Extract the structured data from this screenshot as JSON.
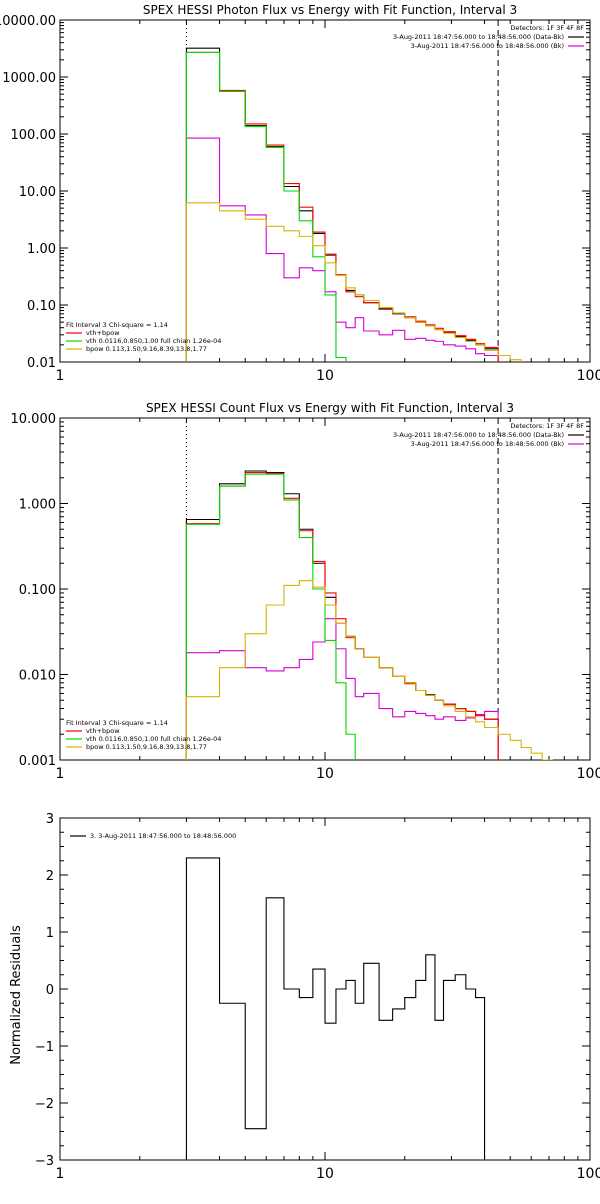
{
  "colors": {
    "data": "#000000",
    "bk": "#d800d8",
    "total": "#ff0000",
    "vth": "#00d800",
    "bpow": "#d8b400"
  },
  "chart_data": [
    {
      "type": "line",
      "title": "SPEX HESSI Photon Flux vs Energy with Fit Function, Interval 3",
      "xlabel": "",
      "ylabel": "",
      "xscale": "log",
      "yscale": "log",
      "xlim": [
        1,
        100
      ],
      "ylim": [
        0.01,
        10000
      ],
      "xticks": [
        "1",
        "10",
        "100"
      ],
      "yticks": [
        "10000.00",
        "1000.00",
        "100.00",
        "10.00",
        "1.00",
        "0.10",
        "0.01"
      ],
      "vlines": [
        {
          "x": 3,
          "style": "dotted"
        },
        {
          "x": 45,
          "style": "dashed"
        }
      ],
      "legend_top": {
        "position": "top-right",
        "header": "Detectors: 1F 3F 4F 8F",
        "items": [
          {
            "label": "3-Aug-2011 18:47:56.000 to 18:48:56.000 (Data-Bk)",
            "color": "#000000"
          },
          {
            "label": "3-Aug-2011 18:47:56.000 to 18:48:56.000 (Bk)",
            "color": "#d800d8"
          }
        ]
      },
      "legend_bottom": {
        "position": "bottom-left",
        "header": "Fit Interval 3   Chi-square = 1.14",
        "items": [
          {
            "label": "vth+bpow",
            "color": "#ff0000"
          },
          {
            "label": "vth 0.0116,0.850,1.00  full chian 1.26e-04",
            "color": "#00d800"
          },
          {
            "label": "bpow 0.113,1.50,9.16,8.39,13.8,1.77",
            "color": "#d8b400"
          }
        ]
      },
      "edges": [
        3,
        4,
        5,
        6,
        7,
        8,
        9,
        10,
        11,
        12,
        13,
        14,
        16,
        18,
        20,
        22,
        24,
        26,
        28,
        31,
        34,
        37,
        40,
        45
      ],
      "series": [
        {
          "key": "data",
          "color": "#000000",
          "values": [
            3200,
            560,
            140,
            60,
            12,
            4.5,
            1.8,
            0.75,
            0.33,
            0.18,
            0.15,
            0.11,
            0.085,
            0.07,
            0.06,
            0.05,
            0.043,
            0.037,
            0.033,
            0.028,
            0.024,
            0.02,
            0.017
          ]
        },
        {
          "key": "bk",
          "color": "#d800d8",
          "values": [
            85,
            5.5,
            3.8,
            0.8,
            0.3,
            0.45,
            0.4,
            0.17,
            0.05,
            0.04,
            0.06,
            0.035,
            0.03,
            0.036,
            0.025,
            0.026,
            0.024,
            0.023,
            0.02,
            0.019,
            0.017,
            0.014,
            0.013
          ]
        },
        {
          "key": "total",
          "color": "#ff0000",
          "values": [
            2700,
            580,
            150,
            64,
            13.5,
            5.2,
            1.9,
            0.78,
            0.34,
            0.17,
            0.14,
            0.11,
            0.088,
            0.072,
            0.062,
            0.052,
            0.045,
            0.039,
            0.034,
            0.029,
            0.025,
            0.021,
            0.018
          ]
        },
        {
          "key": "vth",
          "color": "#00d800",
          "values": [
            2700,
            560,
            135,
            58,
            10,
            3,
            0.7,
            0.15,
            0.012,
            0.0008
          ]
        },
        {
          "key": "bpow",
          "color": "#d8b400",
          "values": [
            6.2,
            4.5,
            3.2,
            2.4,
            2.0,
            1.6,
            1.1,
            0.55,
            0.33,
            0.2,
            0.15,
            0.12,
            0.09,
            0.072,
            0.06,
            0.05,
            0.043,
            0.037,
            0.032,
            0.027,
            0.023,
            0.02,
            0.016,
            0.013,
            0.011,
            0.009
          ]
        }
      ],
      "bpow_extra_edges": [
        50,
        55
      ]
    },
    {
      "type": "line",
      "title": "SPEX HESSI Count Flux vs Energy with Fit Function, Interval 3",
      "xlabel": "",
      "ylabel": "",
      "xscale": "log",
      "yscale": "log",
      "xlim": [
        1,
        100
      ],
      "ylim": [
        0.001,
        10
      ],
      "xticks": [
        "1",
        "10",
        "100"
      ],
      "yticks": [
        "10.000",
        "1.000",
        "0.100",
        "0.010",
        "0.001"
      ],
      "vlines": [
        {
          "x": 3,
          "style": "dotted"
        },
        {
          "x": 45,
          "style": "dashed"
        }
      ],
      "legend_top": {
        "position": "top-right",
        "header": "Detectors: 1F 3F 4F 8F",
        "items": [
          {
            "label": "3-Aug-2011 18:47:56.000 to 18:48:56.000 (Data-Bk)",
            "color": "#000000"
          },
          {
            "label": "3-Aug-2011 18:47:56.000 to 18:48:56.000 (Bk)",
            "color": "#d800d8"
          }
        ]
      },
      "legend_bottom": {
        "position": "bottom-left",
        "header": "Fit Interval 3   Chi-square = 1.14",
        "items": [
          {
            "label": "vth+bpow",
            "color": "#ff0000"
          },
          {
            "label": "vth 0.0116,0.850,1.00  full chian 1.26e-04",
            "color": "#00d800"
          },
          {
            "label": "bpow 0.113,1.50,9.16,8.39,13.8,1.77",
            "color": "#d8b400"
          }
        ]
      },
      "edges": [
        3,
        4,
        5,
        6,
        7,
        8,
        9,
        10,
        11,
        12,
        13,
        14,
        16,
        18,
        20,
        22,
        24,
        26,
        28,
        31,
        34,
        37,
        40,
        45
      ],
      "series": [
        {
          "key": "data",
          "color": "#000000",
          "values": [
            0.65,
            1.7,
            2.4,
            2.3,
            1.3,
            0.5,
            0.2,
            0.08,
            0.04,
            0.028,
            0.02,
            0.016,
            0.012,
            0.0095,
            0.008,
            0.0065,
            0.0058,
            0.005,
            0.0045,
            0.004,
            0.0037,
            0.0034,
            0.003
          ]
        },
        {
          "key": "bk",
          "color": "#d800d8",
          "values": [
            0.018,
            0.019,
            0.012,
            0.011,
            0.012,
            0.015,
            0.024,
            0.045,
            0.02,
            0.009,
            0.0055,
            0.006,
            0.004,
            0.0032,
            0.0037,
            0.0035,
            0.0033,
            0.003,
            0.0032,
            0.0029,
            0.0031,
            0.0034,
            0.0037
          ]
        },
        {
          "key": "total",
          "color": "#ff0000",
          "values": [
            0.58,
            1.6,
            2.3,
            2.25,
            1.15,
            0.48,
            0.21,
            0.09,
            0.045,
            0.027,
            0.02,
            0.016,
            0.012,
            0.0095,
            0.0078,
            0.0065,
            0.0057,
            0.005,
            0.0045,
            0.004,
            0.0037,
            0.0033,
            0.003
          ]
        },
        {
          "key": "vth",
          "color": "#00d800",
          "values": [
            0.57,
            1.6,
            2.2,
            2.2,
            1.1,
            0.4,
            0.1,
            0.025,
            0.008,
            0.002,
            0.0006
          ]
        },
        {
          "key": "bpow",
          "color": "#d8b400",
          "values": [
            0.0055,
            0.012,
            0.03,
            0.065,
            0.11,
            0.125,
            0.105,
            0.065,
            0.04,
            0.028,
            0.02,
            0.016,
            0.012,
            0.0095,
            0.008,
            0.0065,
            0.0057,
            0.005,
            0.0043,
            0.0037,
            0.0032,
            0.0028,
            0.0024,
            0.002,
            0.0017,
            0.0014,
            0.0012,
            0.001
          ]
        },
        {
          "key": "_note",
          "color": "#000000",
          "values": []
        }
      ],
      "bpow_extra_edges": [
        50,
        55,
        60,
        66,
        72
      ]
    },
    {
      "type": "line",
      "title": "",
      "xlabel": "",
      "ylabel": "Normalized Residuals",
      "xscale": "log",
      "yscale": "linear",
      "xlim": [
        1,
        100
      ],
      "ylim": [
        -3,
        3
      ],
      "xticks": [
        "1",
        "10",
        "100"
      ],
      "yticks": [
        "3",
        "2",
        "1",
        "0",
        "-1",
        "-2",
        "-3"
      ],
      "legend": {
        "position": "top-left",
        "items": [
          {
            "label": "3. 3-Aug-2011 18:47:56.000 to 18:48:56.000",
            "color": "#000000"
          }
        ]
      },
      "edges": [
        3,
        4,
        5,
        6,
        7,
        8,
        9,
        10,
        11,
        12,
        13,
        14,
        16,
        18,
        20,
        22,
        24,
        26,
        28,
        31,
        34,
        37,
        40,
        45
      ],
      "series": [
        {
          "key": "residuals",
          "color": "#000000",
          "values": [
            2.3,
            -0.25,
            -2.45,
            1.6,
            0.0,
            -0.15,
            0.35,
            -0.6,
            0.0,
            0.15,
            -0.25,
            0.45,
            -0.55,
            -0.35,
            -0.15,
            0.15,
            0.6,
            -0.55,
            0.15,
            0.25,
            0.0,
            -0.15,
            -3.1
          ]
        }
      ]
    }
  ]
}
